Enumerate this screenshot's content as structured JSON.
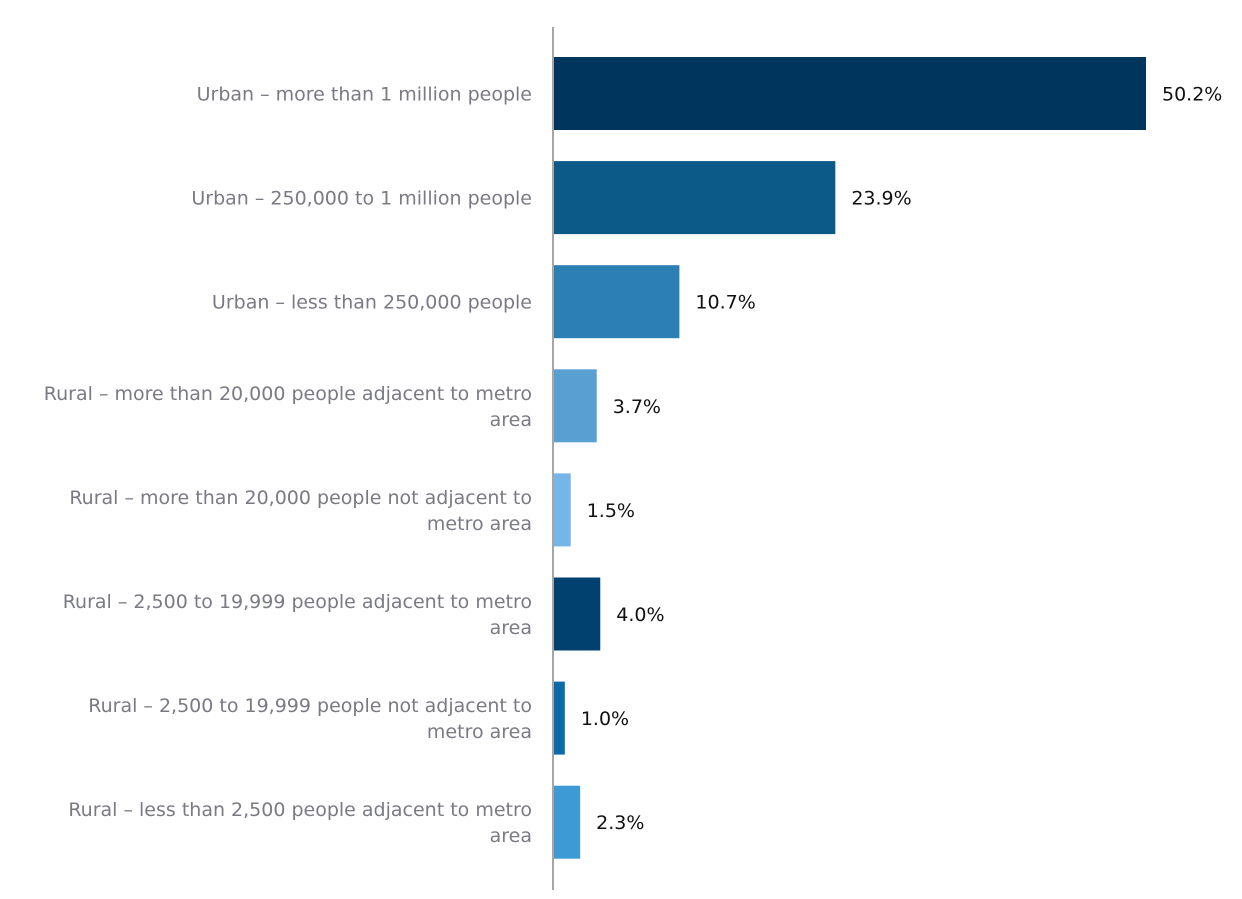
{
  "chart_data": {
    "type": "bar",
    "orientation": "horizontal",
    "title": "",
    "xlabel": "",
    "ylabel": "",
    "xlim": [
      0,
      50.2
    ],
    "grid": false,
    "categories": [
      "Urban – more than 1 million people",
      "Urban – 250,000 to 1 million people",
      "Urban – less than 250,000 people",
      "Rural – more than 20,000 people adjacent to metro area",
      "Rural – more than 20,000 people not adjacent to metro area",
      "Rural – 2,500 to 19,999 people adjacent to metro area",
      "Rural – 2,500 to 19,999 people not adjacent to metro area",
      "Rural – less than 2,500 people adjacent to metro area"
    ],
    "label_lines": [
      [
        "Urban – more than 1 million people"
      ],
      [
        "Urban – 250,000 to 1 million people"
      ],
      [
        "Urban – less than 250,000 people"
      ],
      [
        "Rural – more than 20,000 people adjacent to metro",
        "area"
      ],
      [
        "Rural – more than 20,000 people not adjacent to",
        "metro area"
      ],
      [
        "Rural – 2,500 to 19,999 people adjacent to metro",
        "area"
      ],
      [
        "Rural – 2,500 to 19,999 people not adjacent to",
        "metro area"
      ],
      [
        "Rural – less than 2,500 people adjacent to metro",
        "area"
      ]
    ],
    "values": [
      50.2,
      23.9,
      10.7,
      3.7,
      1.5,
      4.0,
      1.0,
      2.3
    ],
    "value_labels": [
      "50.2%",
      "23.9%",
      "10.7%",
      "3.7%",
      "1.5%",
      "4.0%",
      "1.0%",
      "2.3%"
    ],
    "bar_colors": [
      "#00365d",
      "#0b5a88",
      "#2c7fb2",
      "#5a9fd2",
      "#75b5e8",
      "#00416f",
      "#0b6aa8",
      "#3e9ad4"
    ],
    "axis_color": "#a6a6a6"
  }
}
